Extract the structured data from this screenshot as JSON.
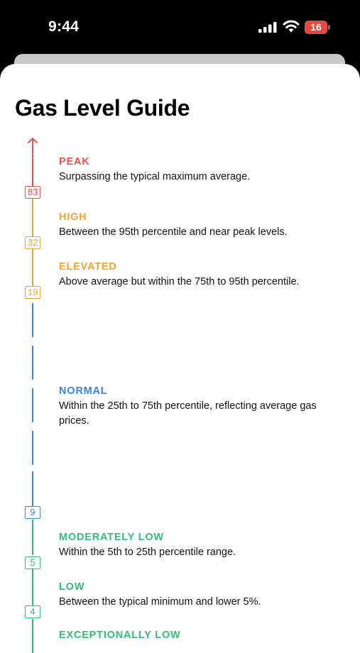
{
  "status_bar": {
    "time": "9:44",
    "battery": "16"
  },
  "page_title": "Gas Level Guide",
  "levels": [
    {
      "title": "PEAK",
      "description": "Surpassing the typical maximum average.",
      "color": "#e8524a",
      "badge": "83"
    },
    {
      "title": "HIGH",
      "description": "Between the 95th percentile and near peak levels.",
      "color": "#f0a530",
      "badge": "32"
    },
    {
      "title": "ELEVATED",
      "description": "Above average but within the 75th to 95th percentile.",
      "color": "#f0a530",
      "badge": "19"
    },
    {
      "title": "NORMAL",
      "description": "Within the 25th to 75th percentile, reflecting average gas prices.",
      "color": "#2f86e8",
      "badge": "9"
    },
    {
      "title": "MODERATELY LOW",
      "description": "Within the 5th to 25th percentile range.",
      "color": "#2dbf7a",
      "badge": "5"
    },
    {
      "title": "LOW",
      "description": "Between the typical minimum and lower 5%.",
      "color": "#2dbf7a",
      "badge": "4"
    },
    {
      "title": "EXCEPTIONALLY LOW",
      "description": "",
      "color": "#2dbf7a"
    }
  ]
}
